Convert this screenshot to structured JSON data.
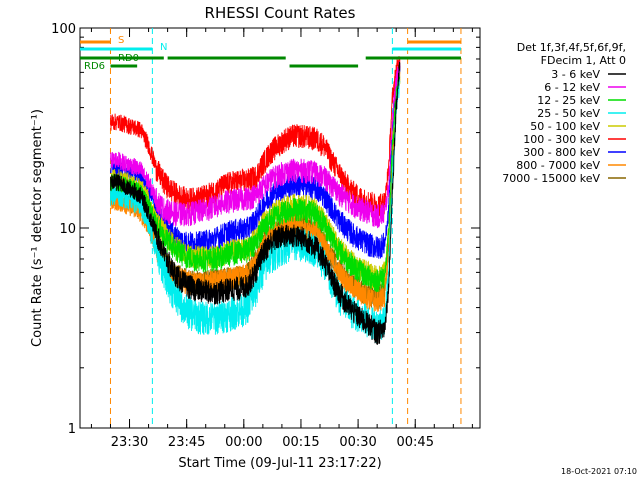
{
  "chart_data": {
    "type": "line",
    "title": "RHESSI Count Rates",
    "xlabel": "Start Time (09-Jul-11 23:17:22)",
    "ylabel": "Count Rate (s⁻¹ detector segment⁻¹)",
    "yscale": "log",
    "ylim": [
      1,
      100
    ],
    "xlim_minutes": [
      0,
      105
    ],
    "y_ticks": [
      {
        "value": 1,
        "label": "1"
      },
      {
        "value": 10,
        "label": "10"
      },
      {
        "value": 100,
        "label": "100"
      }
    ],
    "x_ticks": [
      {
        "t": 13,
        "label": "23:30"
      },
      {
        "t": 28,
        "label": "23:45"
      },
      {
        "t": 43,
        "label": "00:00"
      },
      {
        "t": 58,
        "label": "00:15"
      },
      {
        "t": 73,
        "label": "00:30"
      },
      {
        "t": 88,
        "label": "00:45"
      }
    ],
    "legend_header": [
      "Det 1f,3f,4f,5f,6f,9f,",
      "FDecim 1, Att 0"
    ],
    "x": [
      8,
      10,
      12,
      14,
      16,
      18,
      20,
      22,
      24,
      26,
      28,
      30,
      32,
      34,
      36,
      38,
      40,
      42,
      44,
      46,
      48,
      50,
      52,
      54,
      56,
      58,
      60,
      62,
      64,
      66,
      68,
      70,
      72,
      74,
      76,
      78,
      80,
      81,
      82,
      83,
      84
    ],
    "series": [
      {
        "name": "3 - 6 keV",
        "color": "#000000",
        "values": [
          17,
          17,
          16,
          15.5,
          14.5,
          12,
          9.5,
          7.5,
          6.3,
          5.6,
          5.2,
          5.0,
          4.9,
          4.8,
          4.8,
          4.9,
          5.0,
          5.0,
          5.2,
          6.0,
          7.5,
          8.5,
          9.0,
          9.2,
          9.2,
          9.0,
          8.6,
          8.0,
          7.0,
          5.6,
          4.8,
          4.2,
          3.8,
          3.5,
          3.3,
          3.0,
          3.2,
          5,
          15,
          40,
          70
        ]
      },
      {
        "name": "6 - 12 keV",
        "color": "#ee00ee",
        "values": [
          22,
          22,
          21,
          20.5,
          19.5,
          17,
          14,
          12.5,
          12,
          11.8,
          11.8,
          12,
          12.3,
          12.6,
          13,
          13.5,
          13.8,
          14,
          14.2,
          14.6,
          16,
          17.5,
          18.5,
          19.2,
          19.5,
          19.5,
          19.3,
          19,
          18,
          16.5,
          15,
          14,
          13,
          12.4,
          12,
          11.5,
          12,
          16,
          35,
          55,
          65
        ]
      },
      {
        "name": "12 - 25 keV",
        "color": "#00dd00",
        "values": [
          17,
          17,
          16.5,
          16,
          15,
          13,
          10.5,
          9,
          8.2,
          7.6,
          7.2,
          7.0,
          7.0,
          7.0,
          7.1,
          7.3,
          7.5,
          7.6,
          7.8,
          8.5,
          10,
          11,
          11.8,
          12.2,
          12.5,
          12.5,
          12.2,
          11.8,
          10.6,
          9,
          7.8,
          7.0,
          6.4,
          6.0,
          5.7,
          5.5,
          5.8,
          9,
          25,
          48,
          60
        ]
      },
      {
        "name": "25 - 50 keV",
        "color": "#00eeee",
        "values": [
          15,
          15,
          14.5,
          14,
          13,
          10.5,
          8,
          6.2,
          5.0,
          4.3,
          3.9,
          3.7,
          3.6,
          3.6,
          3.6,
          3.7,
          3.8,
          3.9,
          4.1,
          4.8,
          6.2,
          7.2,
          7.8,
          8.2,
          8.4,
          8.4,
          8.2,
          7.8,
          6.8,
          5.4,
          4.6,
          4.1,
          3.8,
          3.6,
          3.4,
          3.3,
          3.5,
          6,
          18,
          40,
          55
        ]
      },
      {
        "name": "50 - 100 keV",
        "color": "#cccc00",
        "values": [
          18,
          18,
          17.5,
          17,
          16,
          14,
          11,
          9.5,
          8.5,
          7.8,
          7.4,
          7.2,
          7.2,
          7.2,
          7.3,
          7.5,
          7.7,
          7.8,
          8.0,
          8.8,
          10.5,
          11.5,
          12.3,
          12.8,
          13,
          13,
          12.8,
          12.3,
          11,
          9.3,
          8,
          7.2,
          6.6,
          6.2,
          5.9,
          5.7,
          6.0,
          9.5,
          26,
          48,
          58
        ]
      },
      {
        "name": "100 - 300 keV",
        "color": "#ff0000",
        "values": [
          34,
          34,
          33,
          32,
          31,
          26,
          20,
          17,
          15.5,
          14.5,
          14,
          14,
          14.3,
          14.8,
          15.5,
          16.5,
          17,
          17.2,
          17.4,
          18,
          21,
          24,
          26,
          28,
          29,
          29,
          28.5,
          28,
          26,
          22,
          19,
          16.5,
          15,
          14,
          13.5,
          13,
          13.5,
          20,
          45,
          62,
          70
        ]
      },
      {
        "name": "300 - 800 keV",
        "color": "#0000ff",
        "values": [
          20,
          20,
          19.5,
          19,
          18,
          15.5,
          12.5,
          10.5,
          9.5,
          8.8,
          8.5,
          8.4,
          8.5,
          8.7,
          9.0,
          9.4,
          9.7,
          9.8,
          10,
          11,
          13,
          14.5,
          15.5,
          16.2,
          16.5,
          16.5,
          16.2,
          15.8,
          14.6,
          12.7,
          11,
          10,
          9.2,
          8.7,
          8.3,
          8.0,
          8.4,
          12,
          32,
          52,
          62
        ]
      },
      {
        "name": "800 - 7000 keV",
        "color": "#ff8800",
        "values": [
          13.5,
          13.5,
          13,
          12.5,
          11.8,
          10,
          8,
          6.8,
          6.0,
          5.6,
          5.4,
          5.3,
          5.3,
          5.4,
          5.4,
          5.5,
          5.6,
          5.7,
          5.9,
          6.6,
          8,
          9,
          9.6,
          10,
          10.2,
          10.2,
          10,
          9.6,
          8.5,
          7,
          6,
          5.4,
          5.0,
          4.7,
          4.5,
          4.3,
          4.6,
          7.5,
          22,
          45,
          58
        ]
      },
      {
        "name": "7000 - 15000 keV",
        "color": "#886600",
        "values": [
          14,
          14,
          13.5,
          13,
          12.2,
          10.4,
          8.3,
          7.0,
          6.2,
          5.8,
          5.5,
          5.4,
          5.4,
          5.5,
          5.5,
          5.6,
          5.7,
          5.8,
          6.0,
          6.8,
          8.2,
          9.2,
          9.8,
          10.2,
          10.4,
          10.4,
          10.2,
          9.8,
          8.7,
          7.2,
          6.2,
          5.6,
          5.2,
          4.9,
          4.7,
          4.5,
          4.8,
          8,
          23,
          46,
          60
        ]
      }
    ],
    "flags": [
      {
        "label": "S",
        "color": "#ff8800",
        "segments": [
          [
            0,
            8
          ],
          [
            86,
            100
          ]
        ]
      },
      {
        "label": "N",
        "color": "#00eeee",
        "segments": [
          [
            0,
            19
          ],
          [
            82,
            100
          ]
        ]
      },
      {
        "label": "RD0",
        "color": "#008800",
        "segments": [
          [
            0,
            22
          ],
          [
            23,
            54
          ],
          [
            75,
            100
          ]
        ]
      },
      {
        "label": "RD6",
        "color": "#008800",
        "segments": [
          [
            8,
            15
          ],
          [
            55,
            73
          ]
        ]
      }
    ],
    "markers": [
      {
        "t": 8,
        "color": "#ff8800"
      },
      {
        "t": 19,
        "color": "#00eeee"
      },
      {
        "t": 82,
        "color": "#00eeee"
      },
      {
        "t": 86,
        "color": "#ff8800"
      },
      {
        "t": 100,
        "color": "#ff8800"
      }
    ],
    "footer_date": "18-Oct-2021 07:10"
  }
}
